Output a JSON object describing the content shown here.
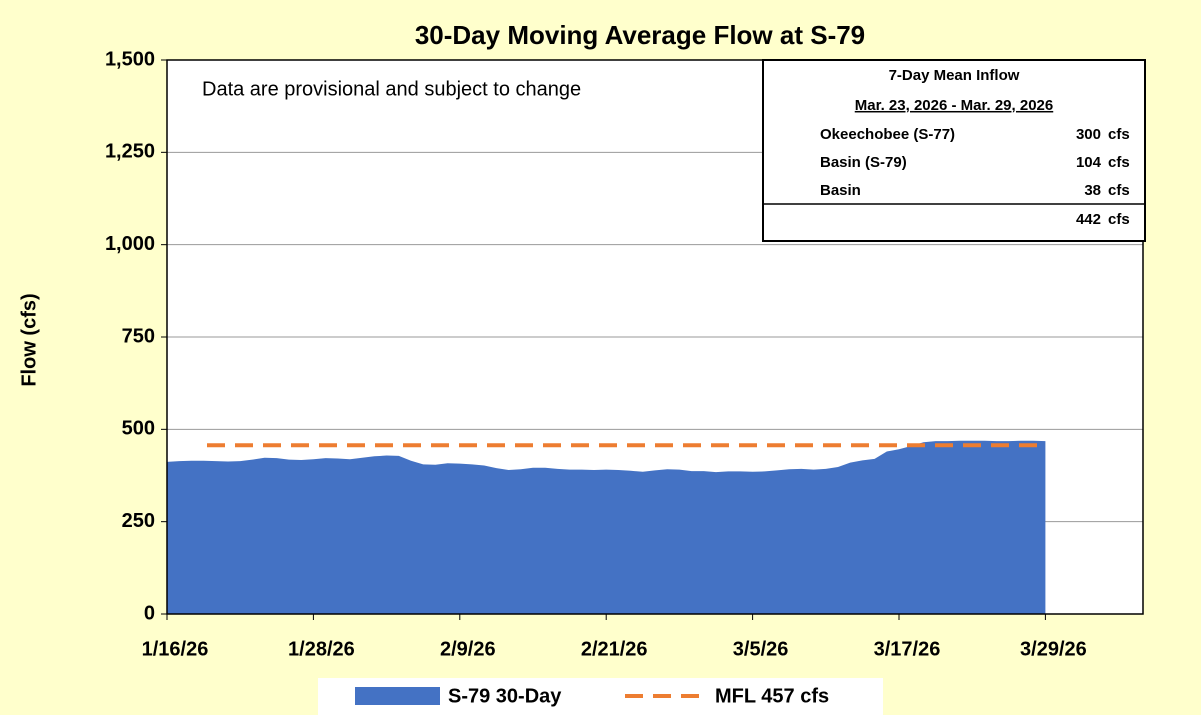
{
  "chart_data": {
    "type": "area",
    "title": "30-Day Moving Average Flow at S-79",
    "y_label": "Flow (cfs)",
    "x": [
      "1/16/26",
      "1/17/26",
      "1/18/26",
      "1/19/26",
      "1/20/26",
      "1/21/26",
      "1/22/26",
      "1/23/26",
      "1/24/26",
      "1/25/26",
      "1/26/26",
      "1/27/26",
      "1/28/26",
      "1/29/26",
      "1/30/26",
      "1/31/26",
      "2/1/26",
      "2/2/26",
      "2/3/26",
      "2/4/26",
      "2/5/26",
      "2/6/26",
      "2/7/26",
      "2/8/26",
      "2/9/26",
      "2/10/26",
      "2/11/26",
      "2/12/26",
      "2/13/26",
      "2/14/26",
      "2/15/26",
      "2/16/26",
      "2/17/26",
      "2/18/26",
      "2/19/26",
      "2/20/26",
      "2/21/26",
      "2/22/26",
      "2/23/26",
      "2/24/26",
      "2/25/26",
      "2/26/26",
      "2/27/26",
      "2/28/26",
      "3/1/26",
      "3/2/26",
      "3/3/26",
      "3/4/26",
      "3/5/26",
      "3/6/26",
      "3/7/26",
      "3/8/26",
      "3/9/26",
      "3/10/26",
      "3/11/26",
      "3/12/26",
      "3/13/26",
      "3/14/26",
      "3/15/26",
      "3/16/26",
      "3/17/26",
      "3/18/26",
      "3/19/26",
      "3/20/26",
      "3/21/26",
      "3/22/26",
      "3/23/26",
      "3/24/26",
      "3/25/26",
      "3/26/26",
      "3/27/26",
      "3/28/26",
      "3/29/26"
    ],
    "series": [
      {
        "name": "S-79 30-Day",
        "color": "#4472c4",
        "values": [
          412,
          414,
          415,
          415,
          414,
          413,
          414,
          418,
          423,
          422,
          418,
          417,
          419,
          422,
          421,
          419,
          423,
          427,
          429,
          428,
          415,
          405,
          404,
          408,
          407,
          405,
          402,
          395,
          390,
          392,
          396,
          396,
          393,
          391,
          391,
          390,
          391,
          390,
          388,
          385,
          389,
          392,
          391,
          387,
          387,
          384,
          386,
          386,
          385,
          386,
          389,
          392,
          393,
          391,
          393,
          398,
          410,
          416,
          420,
          440,
          446,
          455,
          465,
          468,
          468,
          469,
          469,
          469,
          468,
          468,
          469,
          469,
          468
        ]
      }
    ],
    "mfl": {
      "name": "MFL 457 cfs",
      "color": "#ed7d31",
      "value": 457
    },
    "xlim": [
      "1/16/26",
      "4/6/26"
    ],
    "xticks": [
      "1/16/26",
      "1/28/26",
      "2/9/26",
      "2/21/26",
      "3/5/26",
      "3/17/26",
      "3/29/26"
    ],
    "ylim": [
      0,
      1500
    ],
    "yticks": [
      0,
      250,
      500,
      750,
      {
        "value": 1000,
        "label": "1,000"
      },
      {
        "value": 1250,
        "label": "1,250"
      },
      {
        "value": 1500,
        "label": "1,500"
      }
    ],
    "grid": true,
    "legend": "bottom",
    "note": "Data are provisional and subject to change",
    "inflow_table": {
      "title": "7-Day Mean Inflow",
      "period": "Mar. 23, 2026 - Mar. 29, 2026",
      "rows": [
        {
          "label": "Okeechobee (S-77)",
          "value": 300,
          "unit": "cfs"
        },
        {
          "label": "Basin (S-79)",
          "value": 104,
          "unit": "cfs"
        },
        {
          "label": "Basin",
          "value": 38,
          "unit": "cfs"
        }
      ],
      "total": 442,
      "total_unit": "cfs"
    }
  }
}
